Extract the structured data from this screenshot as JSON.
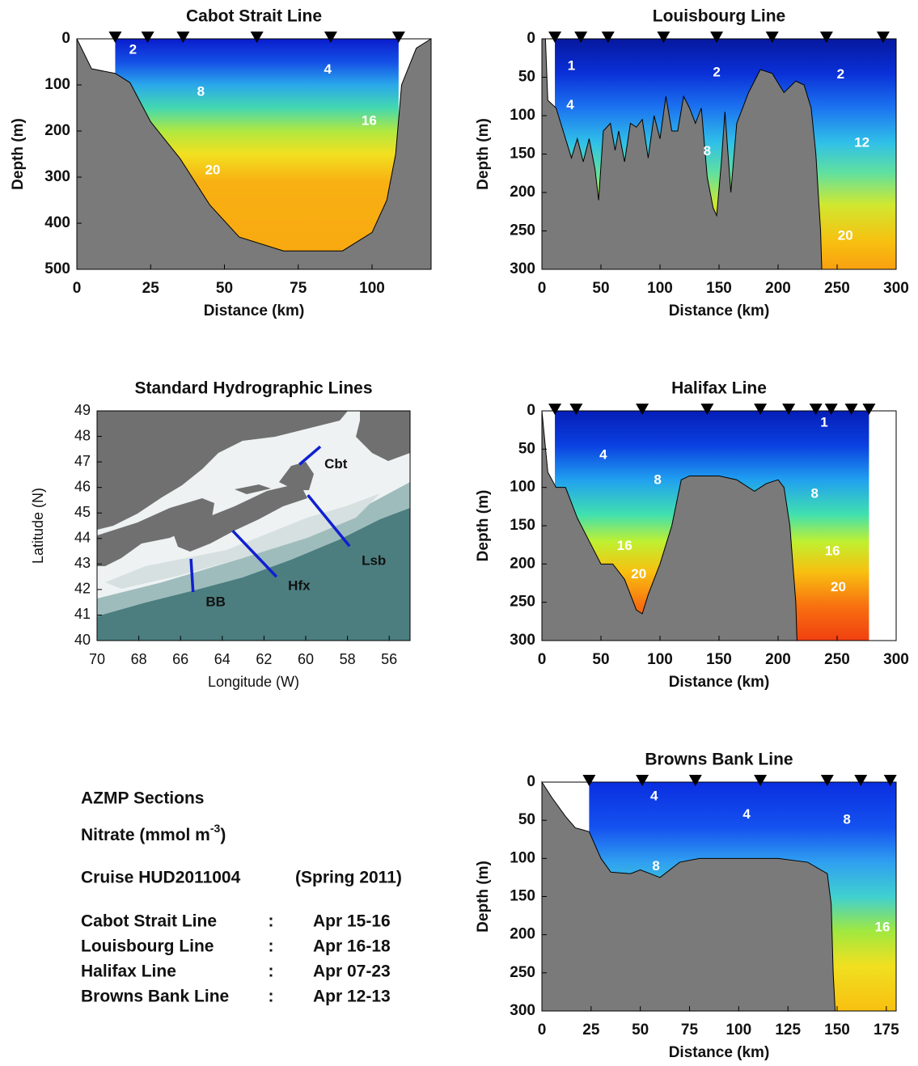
{
  "chart_data": [
    {
      "type": "section",
      "title": "Cabot Strait Line",
      "x_label": "Distance (km)",
      "y_label": "Depth (m)",
      "xlim": [
        0,
        120
      ],
      "ylim": [
        0,
        500
      ],
      "xticks": [
        0,
        25,
        50,
        75,
        100
      ],
      "yticks": [
        0,
        100,
        200,
        300,
        400,
        500
      ],
      "stations": [
        13,
        24,
        36,
        61,
        86,
        109
      ],
      "bottom": {
        "distance": [
          0,
          5,
          13,
          18,
          25,
          35,
          45,
          55,
          70,
          90,
          100,
          105,
          108,
          110,
          115,
          120
        ],
        "depth": [
          0,
          65,
          75,
          95,
          180,
          260,
          360,
          430,
          460,
          460,
          420,
          350,
          250,
          100,
          20,
          0
        ]
      },
      "contour_labels": [
        {
          "value": 2,
          "x": 19,
          "y": 25
        },
        {
          "value": 4,
          "x": 85,
          "y": 68
        },
        {
          "value": 8,
          "x": 42,
          "y": 116
        },
        {
          "value": 16,
          "x": 99,
          "y": 179
        },
        {
          "value": 20,
          "x": 46,
          "y": 286
        }
      ]
    },
    {
      "type": "section",
      "title": "Louisbourg Line",
      "x_label": "Distance (km)",
      "y_label": "Depth (m)",
      "xlim": [
        0,
        300
      ],
      "ylim": [
        0,
        300
      ],
      "xticks": [
        0,
        50,
        100,
        150,
        200,
        250,
        300
      ],
      "yticks": [
        0,
        50,
        100,
        150,
        200,
        250,
        300
      ],
      "stations": [
        11,
        33,
        56,
        103,
        148,
        195,
        241,
        289
      ],
      "bottom": {
        "distance": [
          0,
          3,
          5,
          12,
          20,
          25,
          30,
          35,
          40,
          45,
          48,
          52,
          58,
          62,
          65,
          70,
          75,
          80,
          85,
          90,
          95,
          100,
          105,
          110,
          115,
          120,
          125,
          130,
          135,
          140,
          145,
          148,
          152,
          155,
          160,
          165,
          175,
          185,
          195,
          205,
          215,
          222,
          228,
          232,
          236,
          237
        ],
        "depth": [
          0,
          0,
          80,
          90,
          130,
          155,
          130,
          160,
          130,
          170,
          210,
          120,
          110,
          145,
          120,
          160,
          110,
          115,
          105,
          155,
          100,
          130,
          75,
          120,
          120,
          75,
          90,
          110,
          90,
          180,
          220,
          230,
          160,
          95,
          200,
          110,
          70,
          40,
          45,
          70,
          55,
          60,
          90,
          150,
          250,
          300
        ]
      },
      "contour_labels": [
        {
          "value": 1,
          "x": 25,
          "y": 36
        },
        {
          "value": 2,
          "x": 148,
          "y": 44
        },
        {
          "value": 2,
          "x": 253,
          "y": 47
        },
        {
          "value": 4,
          "x": 24,
          "y": 87
        },
        {
          "value": 8,
          "x": 140,
          "y": 147
        },
        {
          "value": 12,
          "x": 271,
          "y": 136
        },
        {
          "value": 20,
          "x": 257,
          "y": 257
        }
      ]
    },
    {
      "type": "map",
      "title": "Standard Hydrographic Lines",
      "x_label": "Longitude (W)",
      "y_label": "Latitude (N)",
      "xlim": [
        70,
        55
      ],
      "ylim": [
        40,
        49
      ],
      "xticks": [
        70,
        68,
        66,
        64,
        62,
        60,
        58,
        56
      ],
      "yticks": [
        40,
        41,
        42,
        43,
        44,
        45,
        46,
        47,
        48,
        49
      ],
      "color": "#1020d0",
      "lines": [
        {
          "name": "Cbt",
          "lon": [
            60.3,
            59.3
          ],
          "lat": [
            46.9,
            47.6
          ]
        },
        {
          "name": "Lsb",
          "lon": [
            59.9,
            57.9
          ],
          "lat": [
            45.7,
            43.7
          ]
        },
        {
          "name": "Hfx",
          "lon": [
            63.5,
            61.4
          ],
          "lat": [
            44.3,
            42.5
          ]
        },
        {
          "name": "BB",
          "lon": [
            65.5,
            65.4
          ],
          "lat": [
            43.2,
            41.9
          ]
        }
      ]
    },
    {
      "type": "section",
      "title": "Halifax Line",
      "x_label": "Distance (km)",
      "y_label": "Depth (m)",
      "xlim": [
        0,
        300
      ],
      "ylim": [
        0,
        300
      ],
      "xticks": [
        0,
        50,
        100,
        150,
        200,
        250,
        300
      ],
      "yticks": [
        0,
        50,
        100,
        150,
        200,
        250,
        300
      ],
      "stations": [
        11,
        29,
        85,
        140,
        185,
        209,
        232,
        245,
        262,
        277
      ],
      "bottom": {
        "distance": [
          0,
          5,
          12,
          20,
          30,
          40,
          50,
          60,
          70,
          80,
          85,
          90,
          100,
          110,
          118,
          125,
          150,
          165,
          180,
          190,
          200,
          205,
          210,
          215,
          216
        ],
        "depth": [
          0,
          80,
          100,
          100,
          140,
          170,
          200,
          200,
          220,
          260,
          265,
          240,
          200,
          150,
          90,
          85,
          85,
          90,
          105,
          95,
          90,
          100,
          150,
          250,
          300
        ]
      },
      "contour_labels": [
        {
          "value": 1,
          "x": 239,
          "y": 16
        },
        {
          "value": 4,
          "x": 52,
          "y": 58
        },
        {
          "value": 8,
          "x": 98,
          "y": 91
        },
        {
          "value": 8,
          "x": 231,
          "y": 109
        },
        {
          "value": 16,
          "x": 70,
          "y": 177
        },
        {
          "value": 16,
          "x": 246,
          "y": 184
        },
        {
          "value": 20,
          "x": 82,
          "y": 214
        },
        {
          "value": 20,
          "x": 251,
          "y": 231
        }
      ]
    },
    {
      "type": "section",
      "title": "Browns Bank Line",
      "x_label": "Distance (km)",
      "y_label": "Depth (m)",
      "xlim": [
        0,
        180
      ],
      "ylim": [
        0,
        300
      ],
      "xticks": [
        0,
        25,
        50,
        75,
        100,
        125,
        150,
        175
      ],
      "yticks": [
        0,
        50,
        100,
        150,
        200,
        250,
        300
      ],
      "stations": [
        24,
        51,
        78,
        111,
        145,
        162,
        177
      ],
      "bottom": {
        "distance": [
          0,
          5,
          12,
          17,
          20,
          24,
          30,
          35,
          45,
          50,
          55,
          60,
          70,
          80,
          100,
          120,
          135,
          145,
          147,
          148,
          149
        ],
        "depth": [
          0,
          20,
          45,
          60,
          62,
          65,
          100,
          118,
          120,
          115,
          120,
          125,
          105,
          100,
          100,
          100,
          105,
          120,
          160,
          250,
          300
        ]
      },
      "contour_labels": [
        {
          "value": 4,
          "x": 57,
          "y": 19
        },
        {
          "value": 4,
          "x": 104,
          "y": 43
        },
        {
          "value": 8,
          "x": 155,
          "y": 50
        },
        {
          "value": 8,
          "x": 58,
          "y": 111
        },
        {
          "value": 16,
          "x": 173,
          "y": 191
        }
      ]
    }
  ],
  "info": {
    "heading": "AZMP Sections",
    "variable": {
      "text": "Nitrate (mmol m",
      "superscript": "-3",
      "suffix": ")"
    },
    "cruise": "Cruise HUD2011004",
    "season": "(Spring 2011)",
    "rows": [
      {
        "line": "Cabot Strait Line",
        "separator": ":",
        "dates": "Apr 15-16"
      },
      {
        "line": "Louisbourg Line",
        "separator": ":",
        "dates": "Apr 16-18"
      },
      {
        "line": "Halifax Line",
        "separator": ":",
        "dates": "Apr 07-23"
      },
      {
        "line": "Browns Bank Line",
        "separator": ":",
        "dates": "Apr 12-13"
      }
    ]
  }
}
